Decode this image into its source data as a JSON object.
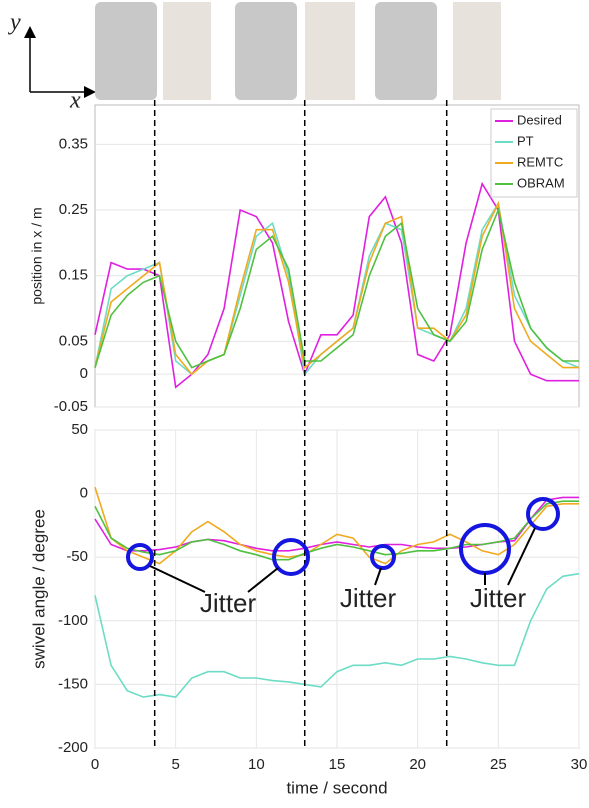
{
  "figure": {
    "y_arrow_label": "y",
    "x_arrow_label": "x"
  },
  "chart_data": [
    {
      "type": "line",
      "ylabel": "position in x / m",
      "x": [
        0,
        1,
        2,
        3,
        4,
        5,
        6,
        7,
        8,
        9,
        10,
        11,
        12,
        13,
        14,
        15,
        16,
        17,
        18,
        19,
        20,
        21,
        22,
        23,
        24,
        25,
        26,
        27,
        28,
        29,
        30
      ],
      "xlim": [
        0,
        30
      ],
      "ylim": [
        -0.05,
        0.41
      ],
      "yticks": [
        -0.05,
        0,
        0.05,
        0.15,
        0.25,
        0.35
      ],
      "grid": true,
      "legend": "top-right",
      "vlines": [
        3.7,
        13,
        21.8
      ],
      "series": [
        {
          "name": "Desired",
          "color": "#e020e0",
          "values": [
            0.06,
            0.17,
            0.16,
            0.16,
            0.15,
            -0.02,
            0.0,
            0.03,
            0.1,
            0.25,
            0.24,
            0.2,
            0.08,
            0.0,
            0.06,
            0.06,
            0.09,
            0.24,
            0.27,
            0.2,
            0.03,
            0.02,
            0.06,
            0.2,
            0.29,
            0.25,
            0.05,
            0.0,
            -0.01,
            -0.01,
            -0.01
          ]
        },
        {
          "name": "PT",
          "color": "#6ddcc6",
          "values": [
            0.01,
            0.13,
            0.15,
            0.16,
            0.17,
            0.02,
            0.0,
            0.02,
            0.03,
            0.12,
            0.21,
            0.23,
            0.15,
            0.0,
            0.03,
            0.05,
            0.07,
            0.18,
            0.23,
            0.22,
            0.07,
            0.06,
            0.05,
            0.1,
            0.22,
            0.26,
            0.12,
            0.07,
            0.04,
            0.02,
            0.01
          ]
        },
        {
          "name": "REMTC",
          "color": "#f0aa20",
          "values": [
            0.01,
            0.11,
            0.13,
            0.15,
            0.17,
            0.03,
            0.0,
            0.02,
            0.03,
            0.13,
            0.22,
            0.22,
            0.14,
            0.01,
            0.03,
            0.05,
            0.07,
            0.17,
            0.23,
            0.24,
            0.07,
            0.07,
            0.05,
            0.09,
            0.21,
            0.26,
            0.1,
            0.05,
            0.03,
            0.01,
            0.01
          ]
        },
        {
          "name": "OBRAM",
          "color": "#50c040",
          "values": [
            0.01,
            0.09,
            0.12,
            0.14,
            0.15,
            0.05,
            0.01,
            0.02,
            0.03,
            0.1,
            0.19,
            0.21,
            0.16,
            0.02,
            0.02,
            0.04,
            0.06,
            0.15,
            0.21,
            0.23,
            0.1,
            0.06,
            0.05,
            0.08,
            0.19,
            0.25,
            0.14,
            0.07,
            0.04,
            0.02,
            0.02
          ]
        }
      ]
    },
    {
      "type": "line",
      "ylabel": "swivel angle / degree",
      "xlabel": "time / second",
      "x": [
        0,
        1,
        2,
        3,
        4,
        5,
        6,
        7,
        8,
        9,
        10,
        11,
        12,
        13,
        14,
        15,
        16,
        17,
        18,
        19,
        20,
        21,
        22,
        23,
        24,
        25,
        26,
        27,
        28,
        29,
        30
      ],
      "xlim": [
        0,
        30
      ],
      "xticks": [
        0,
        5,
        10,
        15,
        20,
        25,
        30
      ],
      "ylim": [
        -200,
        50
      ],
      "yticks": [
        -200,
        -150,
        -100,
        -50,
        0,
        50
      ],
      "grid": true,
      "annotations": [
        "Jitter",
        "Jitter",
        "Jitter"
      ],
      "series": [
        {
          "name": "Desired",
          "color": "#e020e0",
          "values": [
            -20,
            -40,
            -45,
            -45,
            -44,
            -42,
            -38,
            -36,
            -37,
            -40,
            -43,
            -45,
            -45,
            -43,
            -40,
            -38,
            -40,
            -42,
            -40,
            -40,
            -42,
            -43,
            -43,
            -42,
            -40,
            -38,
            -37,
            -20,
            -5,
            -3,
            -3
          ]
        },
        {
          "name": "PT",
          "color": "#6ddcc6",
          "values": [
            -80,
            -135,
            -155,
            -160,
            -158,
            -160,
            -145,
            -140,
            -140,
            -145,
            -145,
            -147,
            -148,
            -150,
            -152,
            -140,
            -135,
            -135,
            -133,
            -135,
            -130,
            -130,
            -128,
            -130,
            -133,
            -135,
            -135,
            -100,
            -75,
            -65,
            -63
          ]
        },
        {
          "name": "REMTC",
          "color": "#f0aa20",
          "values": [
            5,
            -35,
            -45,
            -50,
            -55,
            -45,
            -30,
            -22,
            -30,
            -40,
            -45,
            -48,
            -50,
            -48,
            -40,
            -32,
            -35,
            -50,
            -55,
            -45,
            -40,
            -38,
            -32,
            -38,
            -45,
            -48,
            -40,
            -25,
            -10,
            -8,
            -8
          ]
        },
        {
          "name": "OBRAM",
          "color": "#50c040",
          "values": [
            -10,
            -35,
            -43,
            -46,
            -48,
            -45,
            -38,
            -36,
            -40,
            -45,
            -48,
            -52,
            -52,
            -47,
            -43,
            -40,
            -42,
            -45,
            -48,
            -47,
            -45,
            -45,
            -43,
            -40,
            -40,
            -38,
            -35,
            -20,
            -8,
            -6,
            -6
          ]
        }
      ]
    }
  ]
}
